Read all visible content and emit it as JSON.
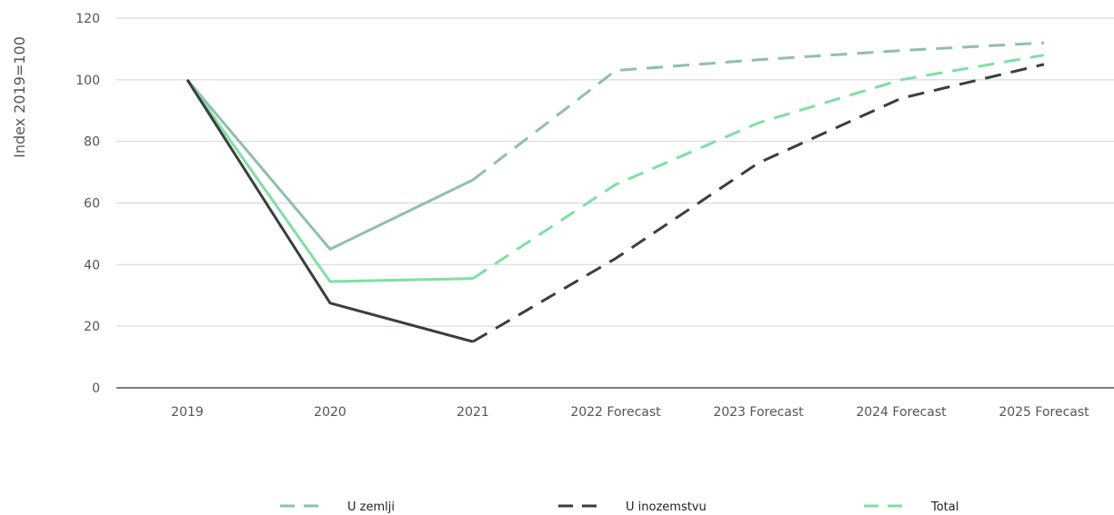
{
  "chart_data": {
    "type": "line",
    "ylabel": "Index 2019=100",
    "xlabel": "",
    "ylim": [
      0,
      120
    ],
    "y_ticks": [
      0,
      20,
      40,
      60,
      80,
      100,
      120
    ],
    "categories": [
      "2019",
      "2020",
      "2021",
      "2022 Forecast",
      "2023 Forecast",
      "2024 Forecast",
      "2025 Forecast"
    ],
    "grid": true,
    "legend_position": "bottom",
    "series": [
      {
        "name": "U zemlji",
        "color": "#8fbfad",
        "values": [
          100,
          45,
          67.5,
          103,
          106.5,
          109.5,
          112
        ],
        "actual_until": "2021"
      },
      {
        "name": "U inozemstvu",
        "color": "#37403d",
        "values": [
          100,
          27.5,
          15,
          42,
          73,
          94,
          105
        ],
        "actual_until": "2021"
      },
      {
        "name": "Total",
        "color": "#7ee0a3",
        "values": [
          100,
          34.5,
          35.5,
          66,
          86,
          100,
          108
        ],
        "actual_until": "2021"
      }
    ]
  }
}
